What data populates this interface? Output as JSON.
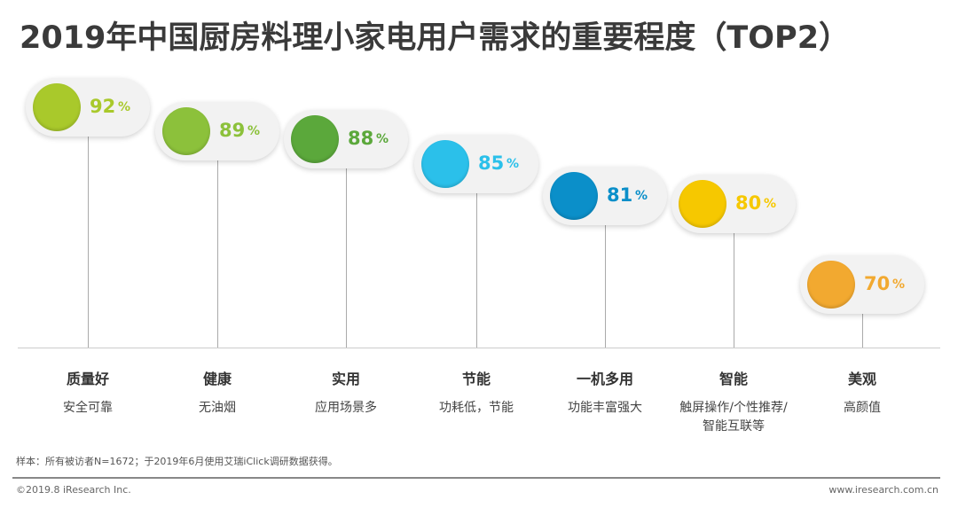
{
  "title": "2019年中国厨房料理小家电用户需求的重要程度（TOP2）",
  "chart_data": {
    "type": "bar",
    "title": "2019年中国厨房料理小家电用户需求的重要程度（TOP2）",
    "unit": "%",
    "categories": [
      "质量好",
      "健康",
      "实用",
      "节能",
      "一机多用",
      "智能",
      "美观"
    ],
    "descriptions": [
      "安全可靠",
      "无油烟",
      "应用场景多",
      "功耗低，节能",
      "功能丰富强大",
      "触屏操作/个性推荐/智能互联等",
      "高颜值"
    ],
    "values": [
      92,
      89,
      88,
      85,
      81,
      80,
      70
    ],
    "colors": [
      "#a9c92b",
      "#8cc13b",
      "#5ba83b",
      "#2bc0ea",
      "#0b8fc9",
      "#f6c800",
      "#f2a930"
    ]
  },
  "note": "样本：所有被访者N=1672；于2019年6月使用艾瑞iClick调研数据获得。",
  "footer": {
    "copyright": "©2019.8 iResearch Inc.",
    "website": "www.iresearch.com.cn"
  }
}
